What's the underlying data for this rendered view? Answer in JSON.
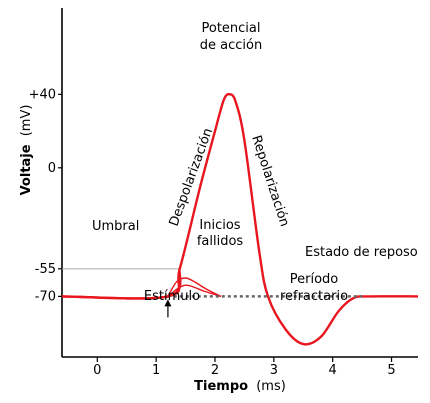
{
  "chart_data": {
    "type": "line",
    "title": "",
    "xlabel_bold": "Tiempo",
    "xlabel_unit": "(ms)",
    "ylabel_bold": "Voltaje",
    "ylabel_unit": "(mV)",
    "xlim": [
      -0.6,
      5.45
    ],
    "ylim": [
      -103,
      87
    ],
    "xticks": [
      0,
      1,
      2,
      3,
      4,
      5
    ],
    "xtick_labels": [
      "0",
      "1",
      "2",
      "3",
      "4",
      "5"
    ],
    "yticks": [
      40,
      0,
      -55,
      -70
    ],
    "ytick_labels": [
      "+40",
      "0",
      "-55",
      "-70"
    ],
    "threshold": -55,
    "resting": -70,
    "series": [
      {
        "role": "action-potential",
        "color": "#e8161e",
        "points": [
          [
            -0.6,
            -70
          ],
          [
            1.2,
            -70
          ],
          [
            1.4,
            -55
          ],
          [
            1.75,
            -10
          ],
          [
            2.0,
            20
          ],
          [
            2.15,
            37
          ],
          [
            2.25,
            40
          ],
          [
            2.35,
            36
          ],
          [
            2.5,
            15
          ],
          [
            2.75,
            -45
          ],
          [
            2.9,
            -70
          ],
          [
            3.2,
            -88
          ],
          [
            3.5,
            -96
          ],
          [
            3.8,
            -92
          ],
          [
            4.1,
            -78
          ],
          [
            4.35,
            -71
          ],
          [
            4.6,
            -70
          ],
          [
            5.45,
            -70
          ]
        ]
      },
      {
        "role": "failed-initiation-1",
        "color": "#e8161e",
        "points": [
          [
            1.2,
            -70
          ],
          [
            1.35,
            -62
          ],
          [
            1.5,
            -60
          ],
          [
            1.65,
            -62
          ],
          [
            1.85,
            -66
          ],
          [
            2.1,
            -70
          ]
        ]
      },
      {
        "role": "failed-initiation-2",
        "color": "#e8161e",
        "points": [
          [
            1.2,
            -70
          ],
          [
            1.4,
            -65
          ],
          [
            1.55,
            -64
          ],
          [
            1.8,
            -67
          ],
          [
            2.1,
            -70
          ]
        ]
      },
      {
        "role": "resting-dashed",
        "color": "#666666",
        "points": [
          [
            1.3,
            -70
          ],
          [
            4.5,
            -70
          ]
        ]
      }
    ],
    "annotations": {
      "umbral": "Umbral",
      "despolarizacion": "Despolarización",
      "repolarizacion": "Repolarización",
      "potencial_line1": "Potencial",
      "potencial_line2": "de acción",
      "inicios_line1": "Inicios",
      "inicios_line2": "fallidos",
      "estado": "Estado de reposo",
      "estimulo": "Estímulo",
      "periodo_line1": "Período",
      "periodo_line2": "refractario"
    },
    "grid": false,
    "legend": "none"
  }
}
